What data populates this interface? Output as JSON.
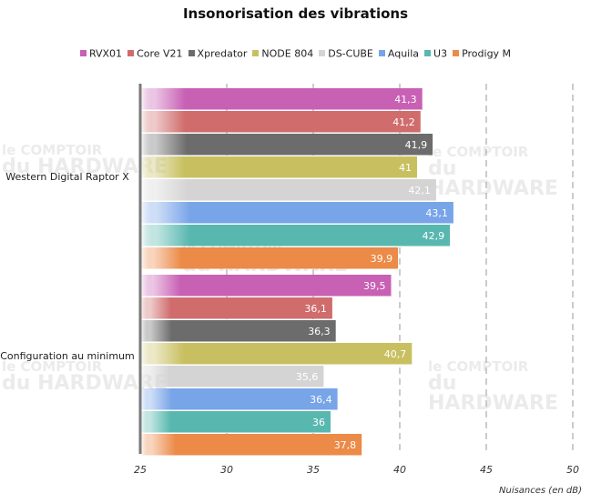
{
  "chart_data": {
    "type": "bar",
    "orientation": "horizontal",
    "title": "Insonorisation des vibrations",
    "categories": [
      "Western Digital Raptor X",
      "Configuration au minimum"
    ],
    "series": [
      {
        "name": "RVX01",
        "color": "#c860b4",
        "values": [
          41.3,
          39.5
        ],
        "labels": [
          "41,3",
          "39,5"
        ]
      },
      {
        "name": "Core V21",
        "color": "#d06c6c",
        "values": [
          41.2,
          36.1
        ],
        "labels": [
          "41,2",
          "36,1"
        ]
      },
      {
        "name": "Xpredator",
        "color": "#6c6c6c",
        "values": [
          41.9,
          36.3
        ],
        "labels": [
          "41,9",
          "36,3"
        ]
      },
      {
        "name": "NODE 804",
        "color": "#c8c060",
        "values": [
          41,
          40.7
        ],
        "labels": [
          "41",
          "40,7"
        ]
      },
      {
        "name": "DS-CUBE",
        "color": "#d4d4d4",
        "values": [
          42.1,
          35.6
        ],
        "labels": [
          "42,1",
          "35,6"
        ]
      },
      {
        "name": "Aquila",
        "color": "#78a4e8",
        "values": [
          43.1,
          36.4
        ],
        "labels": [
          "43,1",
          "36,4"
        ]
      },
      {
        "name": "U3",
        "color": "#58b8b0",
        "values": [
          42.9,
          36
        ],
        "labels": [
          "42,9",
          "36"
        ]
      },
      {
        "name": "Prodigy M",
        "color": "#ec8a48",
        "values": [
          39.9,
          37.8
        ],
        "labels": [
          "39,9",
          "37,8"
        ]
      }
    ],
    "xlim": [
      25,
      50
    ],
    "xticks": [
      25,
      30,
      35,
      40,
      45,
      50
    ],
    "xlabel": "Nuisances (en dB)",
    "ylabel": "",
    "grid": "vertical dashed",
    "legend_position": "top"
  },
  "watermark": {
    "line1": "le COMPTOIR",
    "line2": "du HARDWARE"
  }
}
